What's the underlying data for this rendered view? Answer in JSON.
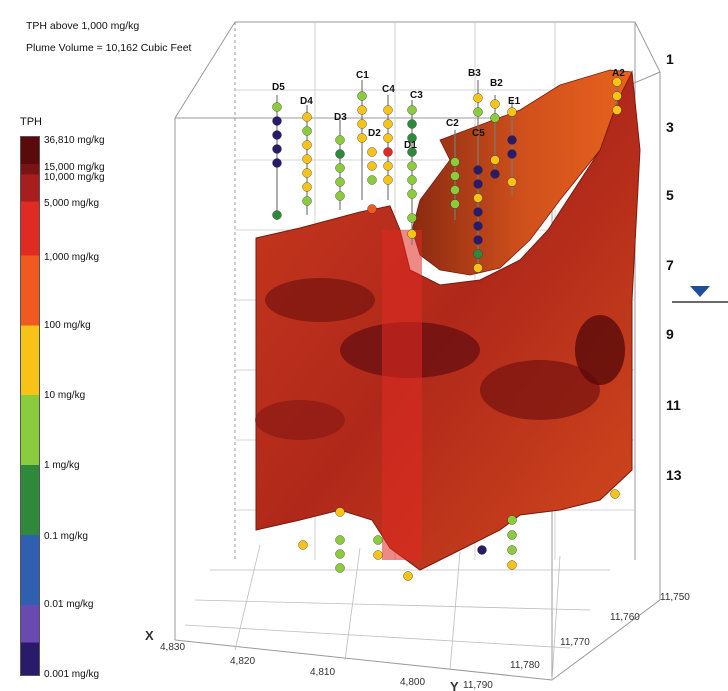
{
  "header": {
    "line1": "TPH above 1,000 mg/kg",
    "line2": "Plume Volume = 10,162 Cubic Feet"
  },
  "legend": {
    "title": "TPH",
    "labels": [
      "36,810 mg/kg",
      "15,000 mg/kg",
      "10,000 mg/kg",
      "5,000 mg/kg",
      "1,000 mg/kg",
      "100 mg/kg",
      "10 mg/kg",
      "1 mg/kg",
      "0.1 mg/kg",
      "0.01 mg/kg",
      "0.001 mg/kg"
    ],
    "bands": [
      "#5a0a0a",
      "#7a1414",
      "#a81e1e",
      "#e02a22",
      "#f05a1e",
      "#f7c316",
      "#8acc3c",
      "#2e8a3a",
      "#2f5fb0",
      "#6a4ab0",
      "#2a1a6a"
    ]
  },
  "depth_labels": [
    "1",
    "3",
    "5",
    "7",
    "9",
    "11",
    "13"
  ],
  "wells": [
    "D5",
    "D4",
    "D3",
    "D2",
    "C1",
    "C4",
    "C3",
    "D1",
    "C2",
    "C5",
    "B2",
    "B3",
    "E1",
    "A2"
  ],
  "axis": {
    "x_name": "X",
    "x_ticks": [
      "4,830",
      "4,820",
      "4,810",
      "4,800"
    ],
    "y_name": "Y",
    "y_ticks": [
      "11,790",
      "11,780",
      "11,770",
      "11,760",
      "11,750"
    ]
  },
  "colors": {
    "plume_dark": "#8a1a12",
    "plume_mid": "#c2321c",
    "plume_light": "#e0541e",
    "water_table": "#1f4e9a"
  }
}
